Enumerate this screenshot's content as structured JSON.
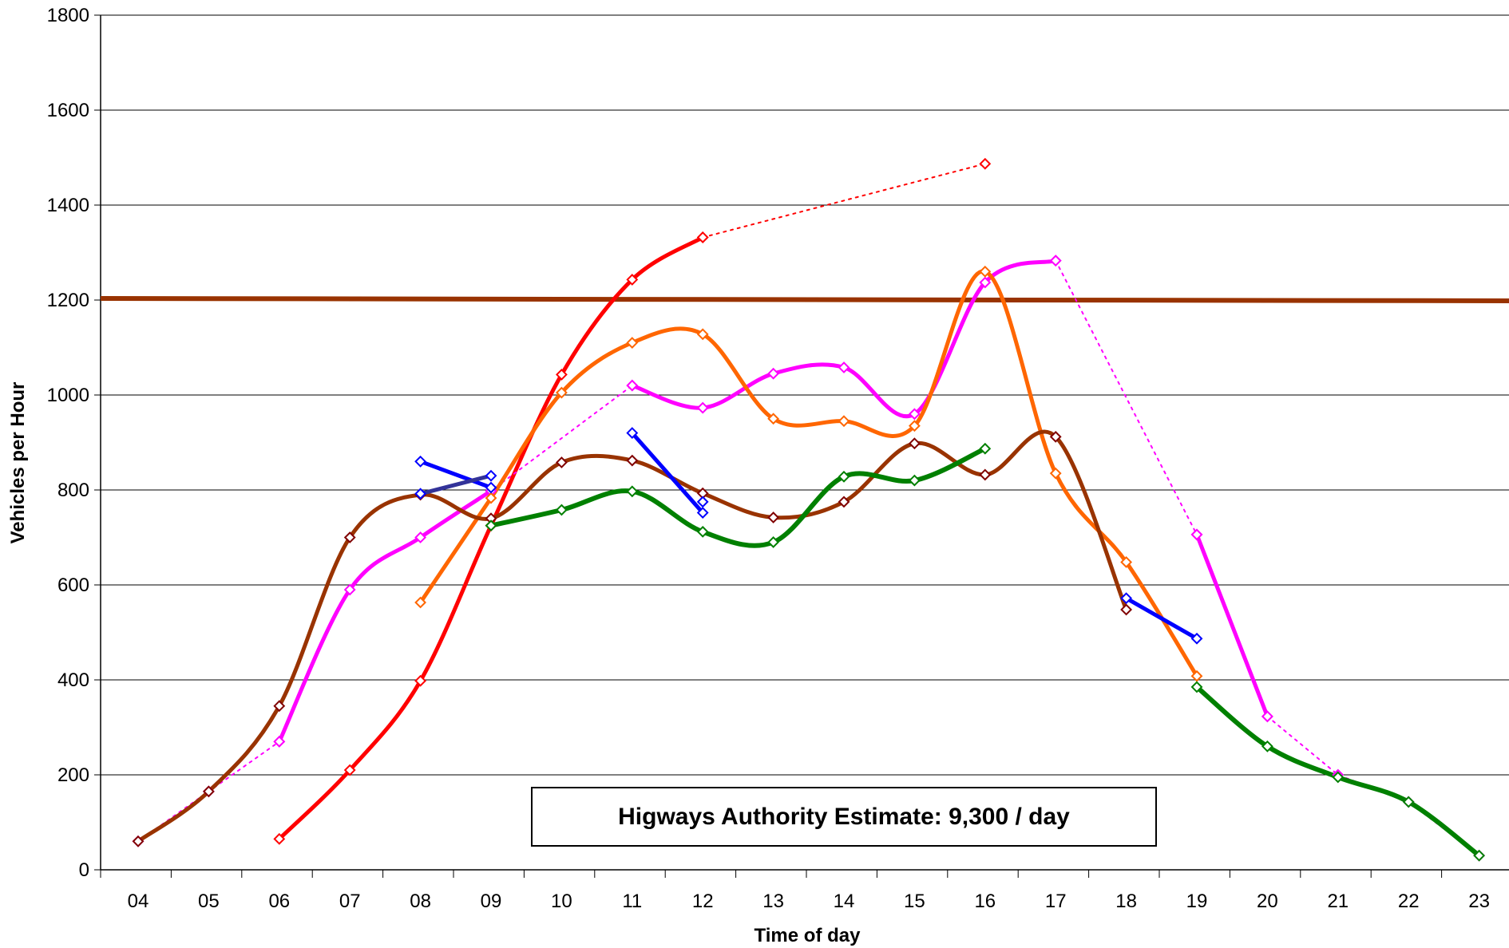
{
  "chart_data": {
    "type": "line",
    "title": "",
    "xlabel": "Time of day",
    "ylabel": "Vehicles per Hour",
    "categories": [
      "04",
      "05",
      "06",
      "07",
      "08",
      "09",
      "10",
      "11",
      "12",
      "13",
      "14",
      "15",
      "16",
      "17",
      "18",
      "19",
      "20",
      "21",
      "22",
      "23"
    ],
    "ylim": [
      0,
      1800
    ],
    "yticks": [
      0,
      200,
      400,
      600,
      800,
      1000,
      1200,
      1400,
      1600,
      1800
    ],
    "grid": "horizontal",
    "legend": "none",
    "reference_line": {
      "value": 1200,
      "color": "#993300"
    },
    "annotation": "Higways Authority Estimate: 9,300 / day",
    "series": [
      {
        "color": "#ff0000",
        "width": 5,
        "marker_color": "#ff0000",
        "segments": [
          {
            "style": "solid",
            "points": [
              [
                "06",
                65
              ],
              [
                "07",
                210
              ],
              [
                "08",
                398
              ],
              [
                "09",
                725
              ],
              [
                "10",
                1043
              ],
              [
                "11",
                1243
              ],
              [
                "12",
                1332
              ]
            ]
          },
          {
            "style": "dotted",
            "points": [
              [
                "12",
                1332
              ],
              [
                "16",
                1487
              ]
            ]
          }
        ]
      },
      {
        "color": "#ff00ff",
        "width": 5,
        "marker_color": "#ff00ff",
        "segments": [
          {
            "style": "dotted",
            "points": [
              [
                "04",
                60
              ],
              [
                "05",
                165
              ],
              [
                "06",
                270
              ]
            ]
          },
          {
            "style": "solid",
            "points": [
              [
                "06",
                270
              ],
              [
                "07",
                590
              ],
              [
                "08",
                700
              ],
              [
                "09",
                798
              ]
            ]
          },
          {
            "style": "dotted",
            "points": [
              [
                "09",
                798
              ],
              [
                "11",
                1020
              ]
            ]
          },
          {
            "style": "solid",
            "points": [
              [
                "11",
                1020
              ],
              [
                "12",
                973
              ],
              [
                "13",
                1045
              ],
              [
                "14",
                1058
              ],
              [
                "15",
                960
              ],
              [
                "16",
                1237
              ],
              [
                "17",
                1283
              ]
            ]
          },
          {
            "style": "dotted",
            "points": [
              [
                "17",
                1283
              ],
              [
                "19",
                706
              ]
            ]
          },
          {
            "style": "solid",
            "points": [
              [
                "19",
                706
              ],
              [
                "20",
                323
              ]
            ]
          },
          {
            "style": "dotted",
            "points": [
              [
                "20",
                323
              ],
              [
                "21",
                200
              ],
              [
                "22",
                143
              ],
              [
                "23",
                30
              ]
            ]
          }
        ]
      },
      {
        "color": "#ff6600",
        "width": 5,
        "marker_color": "#ff6600",
        "segments": [
          {
            "style": "solid",
            "points": [
              [
                "08",
                563
              ],
              [
                "09",
                783
              ],
              [
                "10",
                1005
              ],
              [
                "11",
                1110
              ],
              [
                "12",
                1128
              ],
              [
                "13",
                950
              ],
              [
                "14",
                945
              ],
              [
                "15",
                935
              ],
              [
                "16",
                1260
              ],
              [
                "17",
                835
              ],
              [
                "18",
                648
              ],
              [
                "19",
                408
              ]
            ]
          }
        ]
      },
      {
        "color": "#993300",
        "width": 5,
        "marker_color": "#800000",
        "segments": [
          {
            "style": "solid",
            "points": [
              [
                "04",
                60
              ],
              [
                "05",
                165
              ],
              [
                "06",
                345
              ],
              [
                "07",
                700
              ],
              [
                "08",
                790
              ],
              [
                "09",
                740
              ],
              [
                "10",
                858
              ],
              [
                "11",
                862
              ],
              [
                "12",
                793
              ],
              [
                "13",
                742
              ],
              [
                "14",
                775
              ],
              [
                "15",
                898
              ],
              [
                "16",
                832
              ],
              [
                "17",
                912
              ],
              [
                "18",
                548
              ]
            ]
          }
        ]
      },
      {
        "color": "#008000",
        "width": 6,
        "marker_color": "#008000",
        "segments": [
          {
            "style": "solid",
            "points": [
              [
                "09",
                725
              ],
              [
                "10",
                758
              ],
              [
                "11",
                797
              ],
              [
                "12",
                712
              ],
              [
                "13",
                690
              ],
              [
                "14",
                828
              ],
              [
                "15",
                820
              ],
              [
                "16",
                887
              ]
            ]
          },
          {
            "style": "solid",
            "points": [
              [
                "19",
                385
              ],
              [
                "20",
                260
              ],
              [
                "21",
                195
              ],
              [
                "22",
                143
              ],
              [
                "23",
                30
              ]
            ]
          }
        ]
      },
      {
        "color": "#0000ff",
        "width": 5,
        "marker_color": "#0000ff",
        "segments": [
          {
            "style": "straight",
            "points": [
              [
                "08",
                860
              ],
              [
                "09",
                805
              ]
            ]
          },
          {
            "style": "straight",
            "points": [
              [
                "11",
                920
              ],
              [
                "12",
                752
              ]
            ]
          },
          {
            "style": "straight",
            "points": [
              [
                "18",
                572
              ],
              [
                "19",
                487
              ]
            ]
          }
        ]
      },
      {
        "color": "#333399",
        "width": 5,
        "marker_color": "#0000ff",
        "segments": [
          {
            "style": "straight",
            "points": [
              [
                "08",
                792
              ],
              [
                "09",
                830
              ]
            ]
          }
        ]
      },
      {
        "color": "#0000ff",
        "width": 0,
        "marker_color": "#0000ff",
        "segments": [
          {
            "style": "markers",
            "points": [
              [
                "12",
                775
              ]
            ]
          }
        ]
      }
    ]
  }
}
